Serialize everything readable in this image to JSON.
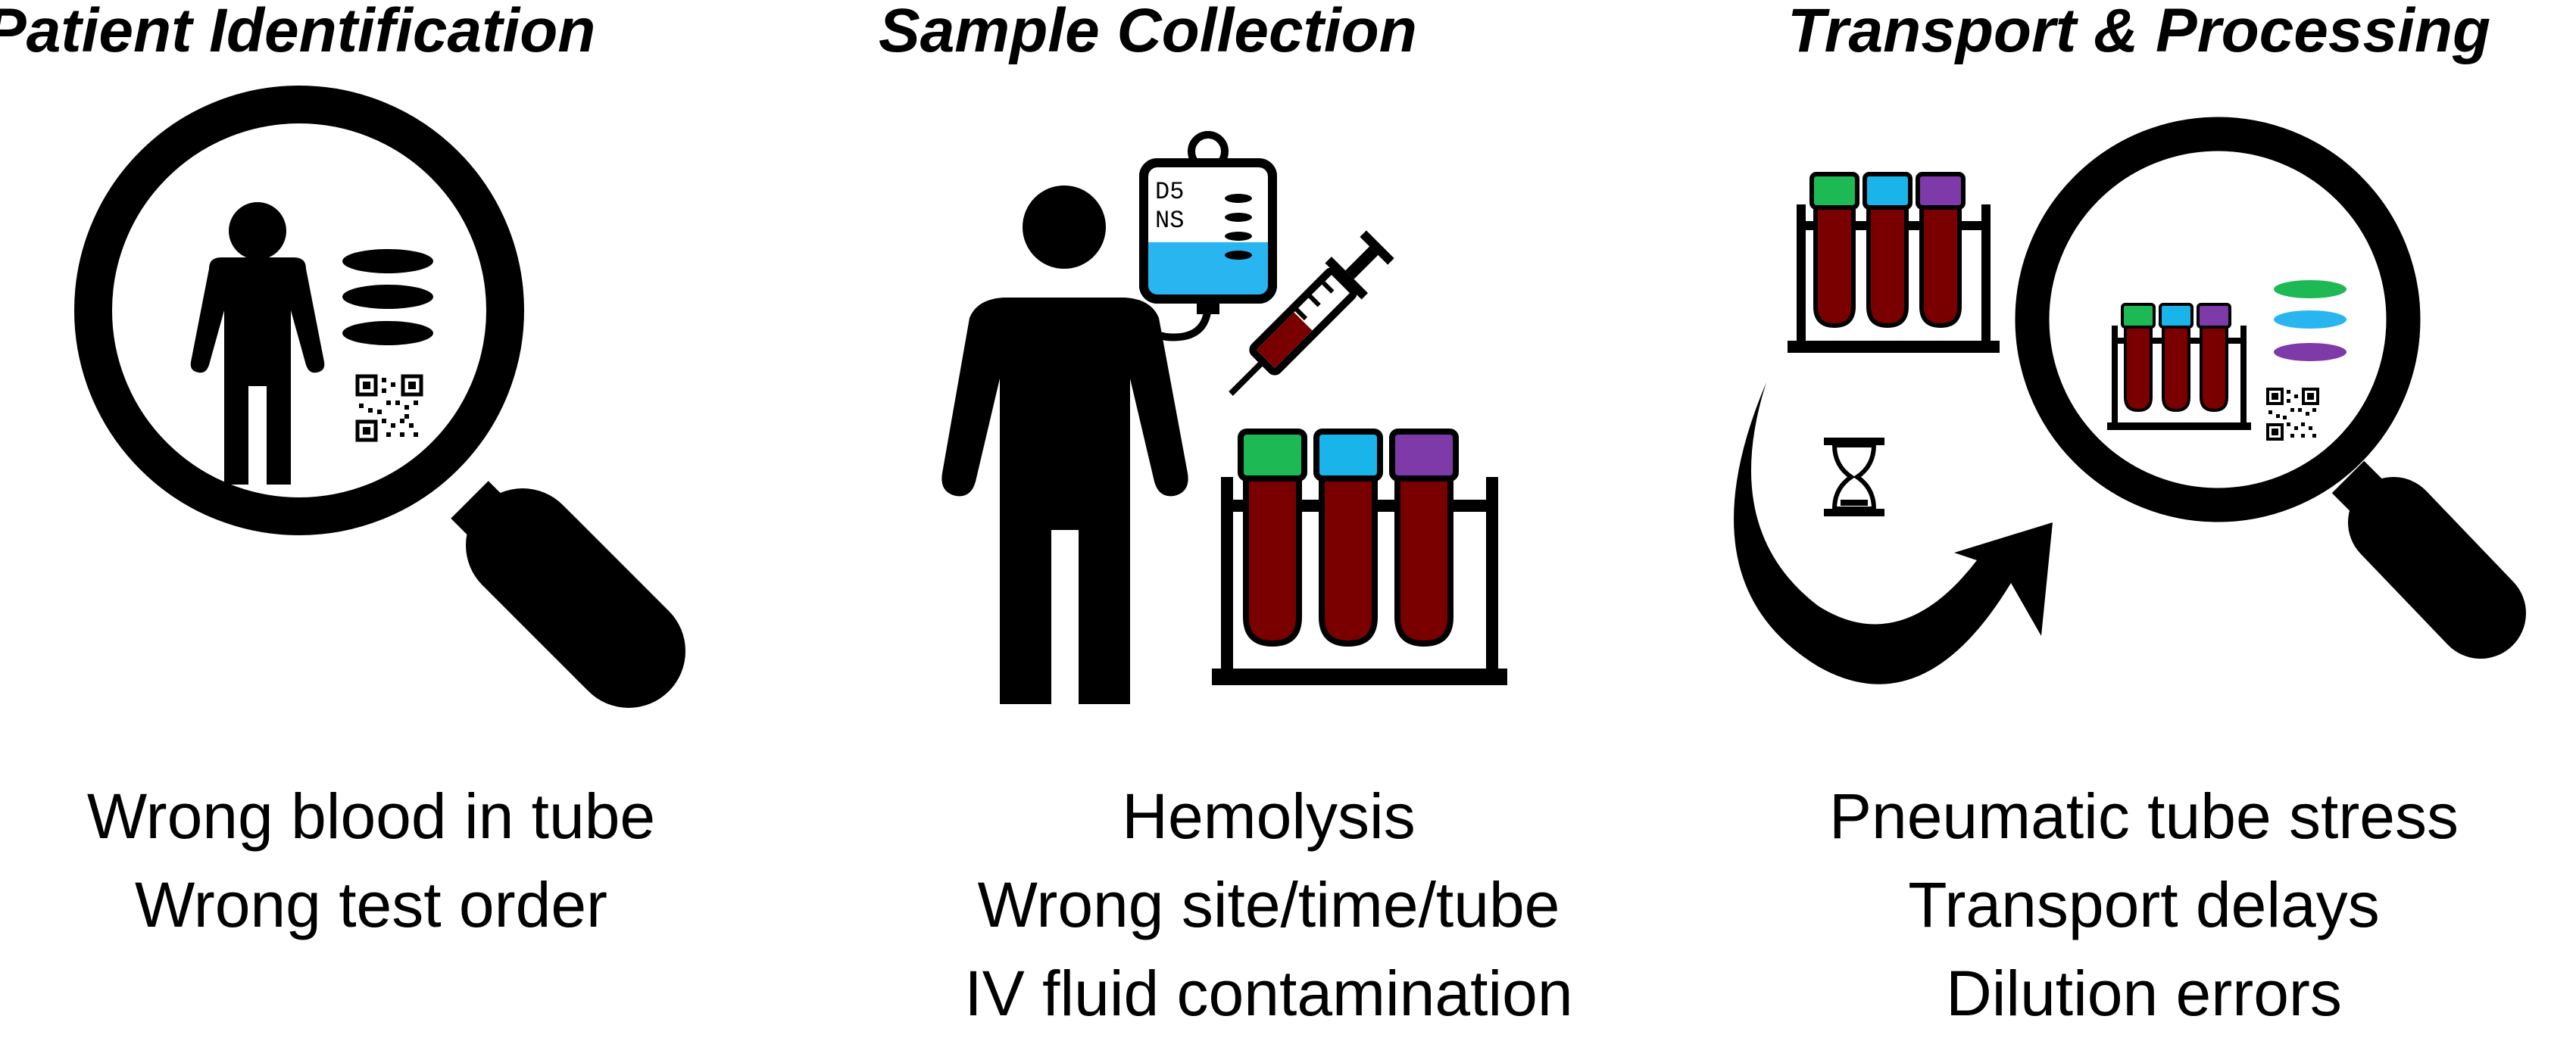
{
  "panels": [
    {
      "title": "Patient Identification",
      "captions": [
        "Wrong blood in tube",
        "Wrong test order"
      ]
    },
    {
      "title": "Sample Collection",
      "captions": [
        "Hemolysis",
        "Wrong site/time/tube",
        "IV fluid contamination"
      ],
      "iv_bag_label": [
        "D5",
        "NS"
      ]
    },
    {
      "title": "Transport & Processing",
      "captions": [
        "Pneumatic tube stress",
        "Transport delays",
        "Dilution errors"
      ]
    }
  ],
  "colors": {
    "tube_green": "#1db954",
    "tube_blue": "#19b4ea",
    "tube_purple": "#7e3aa8",
    "blood": "#7a0000",
    "fluid": "#29b6f0"
  }
}
